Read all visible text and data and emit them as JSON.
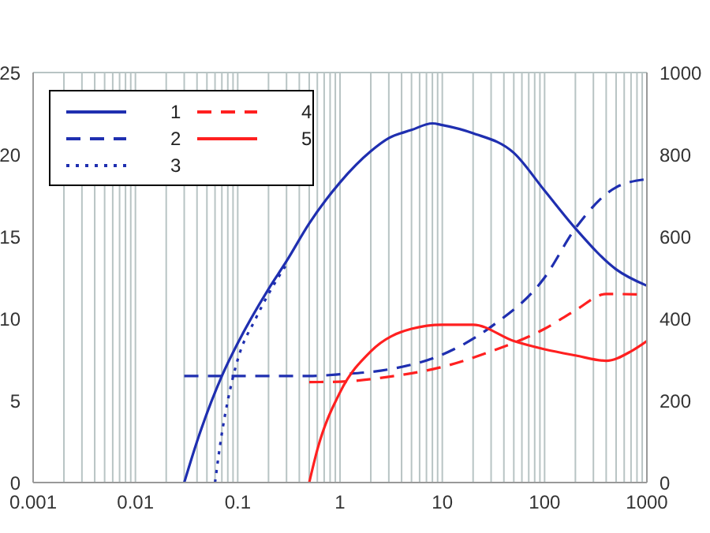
{
  "chart_data": {
    "type": "line",
    "xlim": [
      0.001,
      1000
    ],
    "log": "x",
    "xticks": [
      0.001,
      {
        "value": 0.002,
        "label": null
      },
      {
        "value": 0.003,
        "label": null
      },
      {
        "value": 0.004,
        "label": null
      },
      {
        "value": 0.005,
        "label": null
      },
      {
        "value": 0.006,
        "label": null
      },
      {
        "value": 0.007,
        "label": null
      },
      {
        "value": 0.008,
        "label": null
      },
      {
        "value": 0.009,
        "label": null
      },
      0.01,
      {
        "value": 0.02,
        "label": null
      },
      {
        "value": 0.03,
        "label": null
      },
      {
        "value": 0.04,
        "label": null
      },
      {
        "value": 0.05,
        "label": null
      },
      {
        "value": 0.06,
        "label": null
      },
      {
        "value": 0.07,
        "label": null
      },
      {
        "value": 0.08,
        "label": null
      },
      {
        "value": 0.09,
        "label": null
      },
      0.1,
      {
        "value": 0.2,
        "label": null
      },
      {
        "value": 0.3,
        "label": null
      },
      {
        "value": 0.4,
        "label": null
      },
      {
        "value": 0.5,
        "label": null
      },
      {
        "value": 0.6,
        "label": null
      },
      {
        "value": 0.7,
        "label": null
      },
      {
        "value": 0.8,
        "label": null
      },
      {
        "value": 0.9,
        "label": null
      },
      1,
      {
        "value": 2,
        "label": null
      },
      {
        "value": 3,
        "label": null
      },
      {
        "value": 4,
        "label": null
      },
      {
        "value": 5,
        "label": null
      },
      {
        "value": 6,
        "label": null
      },
      {
        "value": 7,
        "label": null
      },
      {
        "value": 8,
        "label": null
      },
      {
        "value": 9,
        "label": null
      },
      10,
      {
        "value": 20,
        "label": null
      },
      {
        "value": 30,
        "label": null
      },
      {
        "value": 40,
        "label": null
      },
      {
        "value": 50,
        "label": null
      },
      {
        "value": 60,
        "label": null
      },
      {
        "value": 70,
        "label": null
      },
      {
        "value": 80,
        "label": null
      },
      {
        "value": 90,
        "label": null
      },
      100,
      {
        "value": 200,
        "label": null
      },
      {
        "value": 300,
        "label": null
      },
      {
        "value": 400,
        "label": null
      },
      {
        "value": 500,
        "label": null
      },
      {
        "value": 600,
        "label": null
      },
      {
        "value": 700,
        "label": null
      },
      {
        "value": 800,
        "label": null
      },
      {
        "value": 900,
        "label": null
      },
      1000
    ],
    "ylim": [
      0,
      25
    ],
    "yticks": [
      0,
      5,
      10,
      15,
      20,
      25
    ],
    "y2lim": [
      0,
      1000
    ],
    "y2ticks": [
      0,
      200,
      400,
      600,
      800,
      1000
    ],
    "grid": true,
    "legend": "top left",
    "marker": "none",
    "series": [
      {
        "name": "1",
        "color": "#1f2fb0",
        "line_style": "solid",
        "x": [
          0.03,
          0.04,
          0.07,
          0.1,
          0.2,
          0.3,
          0.5,
          1,
          2,
          3,
          5,
          8,
          10,
          20,
          50,
          100,
          200,
          500,
          1000
        ],
        "values": [
          0,
          2.5,
          6.5,
          8.5,
          11.8,
          13.5,
          15.8,
          18.3,
          20.2,
          21,
          21.5,
          21.9,
          21.8,
          21.3,
          20.1,
          17.8,
          15.5,
          13,
          12
        ]
      },
      {
        "name": "2",
        "color": "#1f2fb0",
        "line_style": "dashed",
        "x": [
          0.03,
          0.5,
          1,
          3,
          10,
          30,
          100,
          200,
          500,
          1000
        ],
        "values": [
          6.5,
          6.5,
          6.6,
          6.9,
          7.8,
          9.5,
          12.5,
          15.5,
          18,
          18.5
        ]
      },
      {
        "name": "3",
        "color": "#1f2fb0",
        "line_style": "dotted",
        "x": [
          0.06,
          0.07,
          0.08,
          0.1,
          0.15,
          0.2,
          0.3
        ],
        "values": [
          0,
          3,
          5,
          7.5,
          10,
          11.5,
          13.3
        ]
      },
      {
        "name": "4",
        "color": "#ff2020",
        "line_style": "dashed",
        "axis": "y2",
        "x": [
          0.5,
          1,
          3,
          10,
          30,
          100,
          200,
          400,
          1000
        ],
        "values": [
          245,
          246,
          258,
          282,
          320,
          375,
          420,
          460,
          458
        ]
      },
      {
        "name": "5",
        "color": "#ff2020",
        "line_style": "solid",
        "axis": "y2",
        "x": [
          0.5,
          0.6,
          1,
          2,
          5,
          10,
          20,
          50,
          100,
          200,
          400,
          700,
          1000
        ],
        "values": [
          0,
          80,
          220,
          320,
          375,
          385,
          385,
          345,
          325,
          310,
          297,
          320,
          345
        ]
      }
    ]
  }
}
